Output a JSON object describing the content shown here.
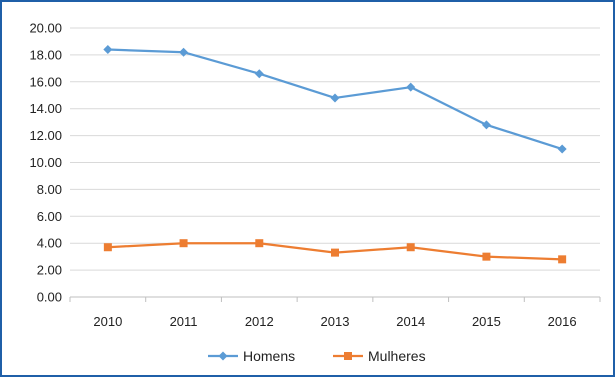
{
  "chart_data": {
    "type": "line",
    "title": "",
    "xlabel": "",
    "ylabel": "",
    "categories": [
      "2010",
      "2011",
      "2012",
      "2013",
      "2014",
      "2015",
      "2016"
    ],
    "ylim": [
      0,
      20
    ],
    "ytick_labels": [
      "0.00",
      "2.00",
      "4.00",
      "6.00",
      "8.00",
      "10.00",
      "12.00",
      "14.00",
      "16.00",
      "18.00",
      "20.00"
    ],
    "grid": true,
    "legend_position": "bottom",
    "series": [
      {
        "name": "Homens",
        "color": "#5b9bd5",
        "marker": "diamond",
        "values": [
          18.4,
          18.2,
          16.6,
          14.8,
          15.6,
          12.8,
          11.0
        ]
      },
      {
        "name": "Mulheres",
        "color": "#ed7d31",
        "marker": "square",
        "values": [
          3.7,
          4.0,
          4.0,
          3.3,
          3.7,
          3.0,
          2.8
        ]
      }
    ]
  }
}
